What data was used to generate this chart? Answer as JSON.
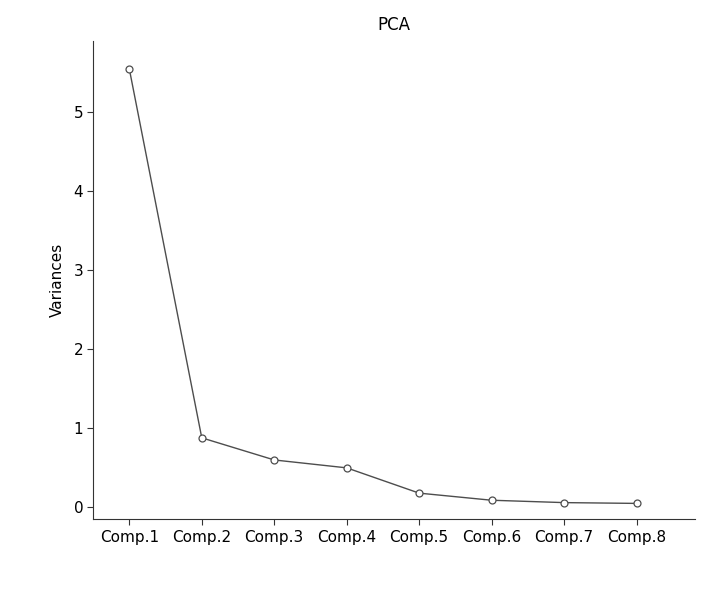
{
  "title": "PCA",
  "ylabel": "Variances",
  "categories": [
    "Comp.1",
    "Comp.2",
    "Comp.3",
    "Comp.4",
    "Comp.5",
    "Comp.6",
    "Comp.7",
    "Comp.8"
  ],
  "values": [
    5.55,
    0.88,
    0.6,
    0.5,
    0.18,
    0.09,
    0.06,
    0.05
  ],
  "yticks": [
    0,
    1,
    2,
    3,
    4,
    5
  ],
  "ylim": [
    -0.15,
    5.9
  ],
  "xlim": [
    0.5,
    8.8
  ],
  "line_color": "#4d4d4d",
  "marker_facecolor": "#ffffff",
  "marker_edgecolor": "#4d4d4d",
  "marker_size": 5,
  "linewidth": 1.0,
  "background_color": "#ffffff",
  "title_fontsize": 12,
  "axis_label_fontsize": 11,
  "tick_fontsize": 11
}
